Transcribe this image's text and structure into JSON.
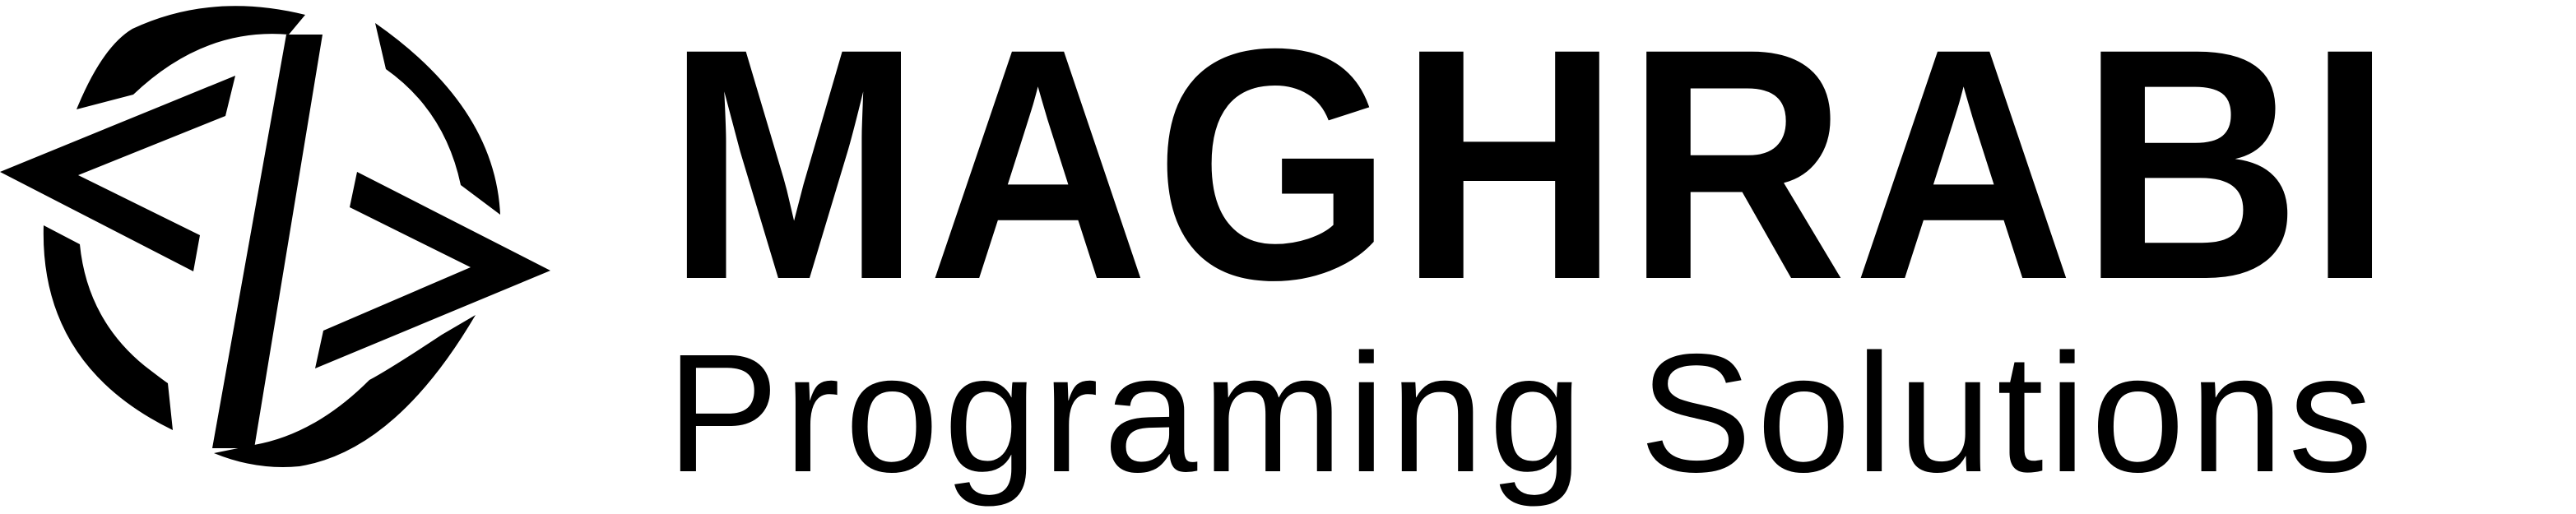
{
  "logo": {
    "brand_name": "MAGHRABI",
    "tagline": "Programing Solutions",
    "emblem_icon": "circular-arrows-logo-icon",
    "text_color": "#000000",
    "background_color": "#ffffff"
  }
}
